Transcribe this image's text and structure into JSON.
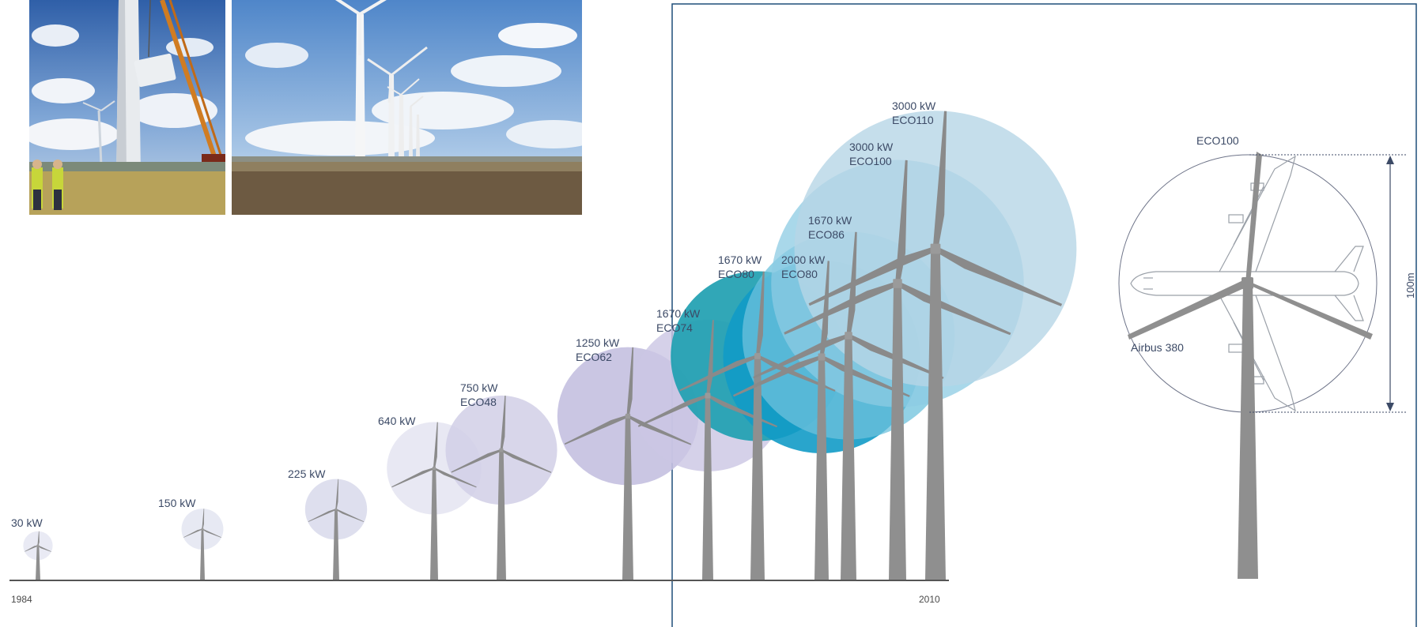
{
  "photos": {
    "left": {
      "name": "crane-lifting-nacelle-photo"
    },
    "right": {
      "name": "wind-farm-photo"
    }
  },
  "timeline": {
    "start_year": "1984",
    "end_year": "2010"
  },
  "turbines": [
    {
      "id": "t30",
      "power": "30 kW",
      "model": "",
      "color": "#dfe1ef",
      "opacity": 0.7
    },
    {
      "id": "t150",
      "power": "150 kW",
      "model": "",
      "color": "#dfe1ef",
      "opacity": 0.75
    },
    {
      "id": "t225",
      "power": "225 kW",
      "model": "",
      "color": "#d6d7ea",
      "opacity": 0.8
    },
    {
      "id": "t640",
      "power": "640 kW",
      "model": "",
      "color": "#e5e6f2",
      "opacity": 0.9
    },
    {
      "id": "t750",
      "power": "750 kW",
      "model": "ECO48",
      "color": "#d1cfe6",
      "opacity": 0.85
    },
    {
      "id": "t1250",
      "power": "1250 kW",
      "model": "ECO62",
      "color": "#c4c0e0",
      "opacity": 0.9
    },
    {
      "id": "t1670a",
      "power": "1670 kW",
      "model": "ECO74",
      "color": "#cbc6e3",
      "opacity": 0.8
    },
    {
      "id": "t1670b",
      "power": "1670 kW",
      "model": "ECO80",
      "color": "#1f9fb1",
      "opacity": 0.92
    },
    {
      "id": "t2000",
      "power": "2000 kW",
      "model": "ECO80",
      "color": "#129bc7",
      "opacity": 0.9
    },
    {
      "id": "t1670c",
      "power": "1670 kW",
      "model": "ECO86",
      "color": "#6ec1dc",
      "opacity": 0.75
    },
    {
      "id": "t3000a",
      "power": "3000 kW",
      "model": "ECO100",
      "color": "#8ccbe3",
      "opacity": 0.75
    },
    {
      "id": "t3000b",
      "power": "3000 kW",
      "model": "ECO110",
      "color": "#b7d6e6",
      "opacity": 0.8
    }
  ],
  "comparison": {
    "turbine_label": "ECO100",
    "aircraft_label": "Airbus 380",
    "height_label": "100m"
  },
  "colors": {
    "tower": "#8f8f8f",
    "baseline": "#555555",
    "frame": "#1e4f7a",
    "text": "#3c4a66"
  }
}
